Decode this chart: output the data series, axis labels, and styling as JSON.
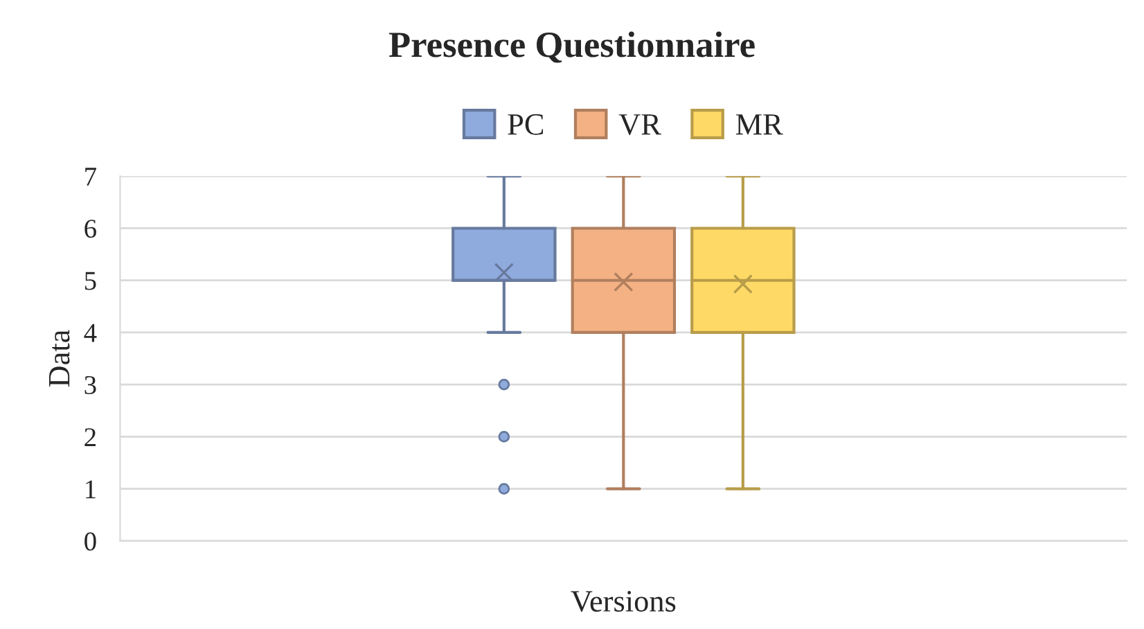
{
  "chart_data": {
    "type": "box",
    "title": "Presence Questionnaire",
    "xlabel": "Versions",
    "ylabel": "Data",
    "categories": [
      null
    ],
    "series": [
      {
        "name": "PC",
        "color": "#8faadc",
        "boxes": [
          {
            "low": 4,
            "q1": 5,
            "median": 5,
            "q3": 6,
            "high": 7,
            "mean": 5.15,
            "outliers": [
              1,
              2,
              3
            ]
          }
        ]
      },
      {
        "name": "VR",
        "color": "#f4b183",
        "boxes": [
          {
            "low": 1,
            "q1": 4,
            "median": 5,
            "q3": 6,
            "high": 7,
            "mean": 4.97
          }
        ]
      },
      {
        "name": "MR",
        "color": "#ffd966",
        "boxes": [
          {
            "low": 1,
            "q1": 4,
            "median": 5,
            "q3": 6,
            "high": 7,
            "mean": 4.93
          }
        ]
      }
    ],
    "ylim": [
      0,
      7
    ],
    "yticks": [
      0,
      1,
      2,
      3,
      4,
      5,
      6,
      7
    ],
    "grid": "y",
    "legend": "top"
  }
}
